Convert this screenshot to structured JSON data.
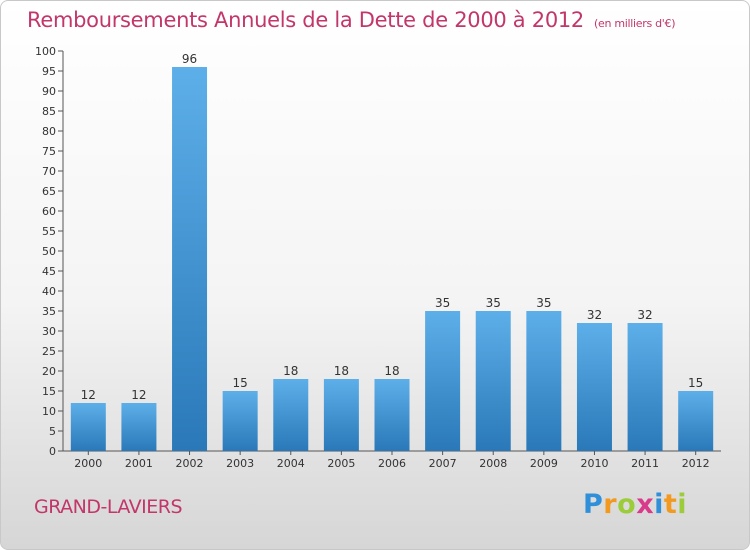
{
  "title": "Remboursements Annuels de la Dette de 2000 à 2012",
  "subtitle": "(en milliers d'€)",
  "place_name": "GRAND-LAVIERS",
  "logo": {
    "text": "Proxiti",
    "letters": [
      {
        "char": "P",
        "color": "#2f8fd8"
      },
      {
        "char": "r",
        "color": "#f29a1f"
      },
      {
        "char": "o",
        "color": "#9ccc3a"
      },
      {
        "char": "x",
        "color": "#d93a8a"
      },
      {
        "char": "i",
        "color": "#2f8fd8"
      },
      {
        "char": "t",
        "color": "#f29a1f"
      },
      {
        "char": "i",
        "color": "#9ccc3a"
      }
    ]
  },
  "colors": {
    "title": "#c2366a",
    "bar_top": "#5dafe9",
    "bar_bottom": "#2a78b8",
    "axis": "#555555"
  },
  "chart_data": {
    "type": "bar",
    "categories": [
      "2000",
      "2001",
      "2002",
      "2003",
      "2004",
      "2005",
      "2006",
      "2007",
      "2008",
      "2009",
      "2010",
      "2011",
      "2012"
    ],
    "values": [
      12,
      12,
      96,
      15,
      18,
      18,
      18,
      35,
      35,
      35,
      32,
      32,
      15
    ],
    "ylim": [
      0,
      100
    ],
    "yticks": [
      0,
      5,
      10,
      15,
      20,
      25,
      30,
      35,
      40,
      45,
      50,
      55,
      60,
      65,
      70,
      75,
      80,
      85,
      90,
      95,
      100
    ],
    "grid": false,
    "legend": "none"
  }
}
